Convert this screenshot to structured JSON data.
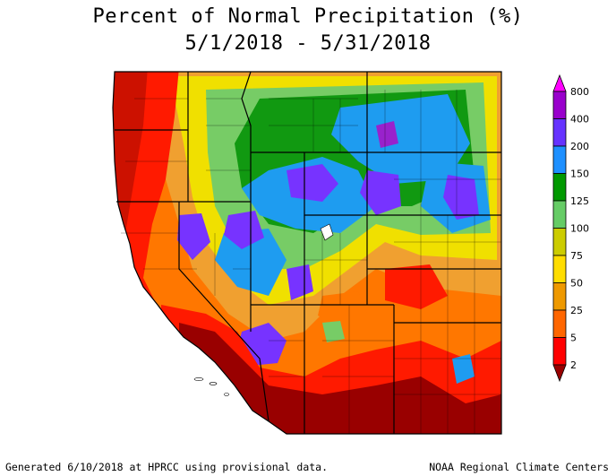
{
  "title": {
    "line1": "Percent of Normal Precipitation (%)",
    "line2": "5/1/2018 - 5/31/2018"
  },
  "footer": {
    "generated": "Generated 6/10/2018 at HPRCC using provisional data.",
    "source": "NOAA Regional Climate Centers"
  },
  "legend": {
    "levels": [
      {
        "label": "800",
        "color": "#ff00ff"
      },
      {
        "label": "400",
        "color": "#9900cc"
      },
      {
        "label": "200",
        "color": "#6633ff"
      },
      {
        "label": "150",
        "color": "#1e90ff"
      },
      {
        "label": "125",
        "color": "#009900"
      },
      {
        "label": "100",
        "color": "#66cc66"
      },
      {
        "label": "75",
        "color": "#cccc00"
      },
      {
        "label": "50",
        "color": "#ffdd00"
      },
      {
        "label": "25",
        "color": "#ee9900"
      },
      {
        "label": "5",
        "color": "#ff6600"
      },
      {
        "label": "2",
        "color": "#ff0000"
      },
      {
        "label": "",
        "color": "#990000"
      }
    ]
  },
  "colors": {
    "dark_red": "#990000",
    "red": "#ff1a00",
    "orange": "#ff7700",
    "light_orange": "#f0a030",
    "yellow": "#f0e000",
    "light_green": "#77cc66",
    "green": "#119911",
    "blue": "#1e9cf0",
    "purple": "#7733ff",
    "violet": "#9922cc"
  }
}
